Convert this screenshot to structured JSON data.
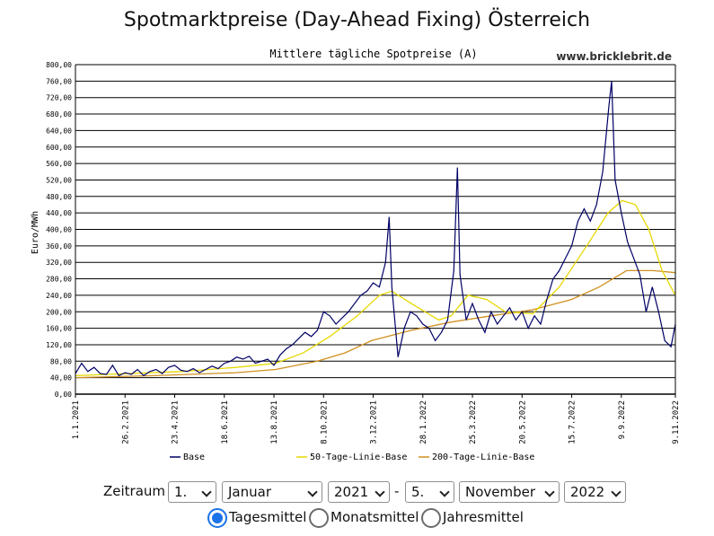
{
  "page": {
    "main_title": "Spotmarktpreise (Day-Ahead Fixing) Österreich",
    "watermark": "www.bricklebrit.de"
  },
  "chart_data": {
    "type": "line",
    "title": "Mittlere tägliche Spotpreise (A)",
    "ylabel": "Euro/MWh",
    "xlabel": "",
    "ylim": [
      0,
      800
    ],
    "y_ticks": [
      "0,00",
      "40,00",
      "80,00",
      "120,00",
      "160,00",
      "200,00",
      "240,00",
      "280,00",
      "320,00",
      "360,00",
      "400,00",
      "440,00",
      "480,00",
      "520,00",
      "560,00",
      "600,00",
      "640,00",
      "680,00",
      "720,00",
      "760,00",
      "800,00"
    ],
    "x_range": [
      "2021-01-01",
      "2022-11-09"
    ],
    "x_ticks": [
      {
        "date": "2021-01-01",
        "label": "1.1.2021"
      },
      {
        "date": "2021-02-26",
        "label": "26.2.2021"
      },
      {
        "date": "2021-04-23",
        "label": "23.4.2021"
      },
      {
        "date": "2021-06-18",
        "label": "18.6.2021"
      },
      {
        "date": "2021-08-13",
        "label": "13.8.2021"
      },
      {
        "date": "2021-10-08",
        "label": "8.10.2021"
      },
      {
        "date": "2021-12-03",
        "label": "3.12.2021"
      },
      {
        "date": "2022-01-28",
        "label": "28.1.2022"
      },
      {
        "date": "2022-03-25",
        "label": "25.3.2022"
      },
      {
        "date": "2022-05-20",
        "label": "20.5.2022"
      },
      {
        "date": "2022-07-15",
        "label": "15.7.2022"
      },
      {
        "date": "2022-09-09",
        "label": "9.9.2022"
      },
      {
        "date": "2022-11-09",
        "label": "9.11.2022"
      }
    ],
    "grid": true,
    "legend_position": "bottom",
    "series": [
      {
        "name": "Base",
        "color": "#000066",
        "points": [
          [
            "2021-01-01",
            50
          ],
          [
            "2021-01-08",
            75
          ],
          [
            "2021-01-15",
            55
          ],
          [
            "2021-01-22",
            65
          ],
          [
            "2021-01-29",
            50
          ],
          [
            "2021-02-05",
            48
          ],
          [
            "2021-02-12",
            70
          ],
          [
            "2021-02-19",
            45
          ],
          [
            "2021-02-26",
            52
          ],
          [
            "2021-03-05",
            48
          ],
          [
            "2021-03-12",
            60
          ],
          [
            "2021-03-19",
            45
          ],
          [
            "2021-03-26",
            55
          ],
          [
            "2021-04-02",
            60
          ],
          [
            "2021-04-09",
            50
          ],
          [
            "2021-04-16",
            65
          ],
          [
            "2021-04-23",
            70
          ],
          [
            "2021-04-30",
            58
          ],
          [
            "2021-05-07",
            55
          ],
          [
            "2021-05-14",
            62
          ],
          [
            "2021-05-21",
            52
          ],
          [
            "2021-05-28",
            60
          ],
          [
            "2021-06-04",
            68
          ],
          [
            "2021-06-11",
            62
          ],
          [
            "2021-06-18",
            75
          ],
          [
            "2021-06-25",
            80
          ],
          [
            "2021-07-02",
            90
          ],
          [
            "2021-07-09",
            85
          ],
          [
            "2021-07-16",
            92
          ],
          [
            "2021-07-23",
            75
          ],
          [
            "2021-07-30",
            80
          ],
          [
            "2021-08-06",
            85
          ],
          [
            "2021-08-13",
            70
          ],
          [
            "2021-08-20",
            95
          ],
          [
            "2021-08-27",
            110
          ],
          [
            "2021-09-03",
            120
          ],
          [
            "2021-09-10",
            135
          ],
          [
            "2021-09-17",
            150
          ],
          [
            "2021-09-24",
            140
          ],
          [
            "2021-10-01",
            155
          ],
          [
            "2021-10-08",
            200
          ],
          [
            "2021-10-15",
            190
          ],
          [
            "2021-10-22",
            170
          ],
          [
            "2021-10-29",
            185
          ],
          [
            "2021-11-05",
            200
          ],
          [
            "2021-11-12",
            220
          ],
          [
            "2021-11-19",
            240
          ],
          [
            "2021-11-26",
            250
          ],
          [
            "2021-12-03",
            270
          ],
          [
            "2021-12-10",
            260
          ],
          [
            "2021-12-17",
            320
          ],
          [
            "2021-12-21",
            430
          ],
          [
            "2021-12-24",
            260
          ],
          [
            "2021-12-31",
            90
          ],
          [
            "2022-01-07",
            160
          ],
          [
            "2022-01-14",
            200
          ],
          [
            "2022-01-21",
            190
          ],
          [
            "2022-01-28",
            170
          ],
          [
            "2022-02-04",
            160
          ],
          [
            "2022-02-11",
            130
          ],
          [
            "2022-02-18",
            150
          ],
          [
            "2022-02-25",
            180
          ],
          [
            "2022-03-04",
            300
          ],
          [
            "2022-03-08",
            550
          ],
          [
            "2022-03-11",
            290
          ],
          [
            "2022-03-18",
            180
          ],
          [
            "2022-03-25",
            220
          ],
          [
            "2022-04-01",
            180
          ],
          [
            "2022-04-08",
            150
          ],
          [
            "2022-04-15",
            200
          ],
          [
            "2022-04-22",
            170
          ],
          [
            "2022-04-29",
            190
          ],
          [
            "2022-05-06",
            210
          ],
          [
            "2022-05-13",
            180
          ],
          [
            "2022-05-20",
            200
          ],
          [
            "2022-05-27",
            160
          ],
          [
            "2022-06-03",
            190
          ],
          [
            "2022-06-10",
            170
          ],
          [
            "2022-06-17",
            230
          ],
          [
            "2022-06-24",
            280
          ],
          [
            "2022-07-01",
            300
          ],
          [
            "2022-07-08",
            330
          ],
          [
            "2022-07-15",
            360
          ],
          [
            "2022-07-22",
            420
          ],
          [
            "2022-07-29",
            450
          ],
          [
            "2022-08-05",
            420
          ],
          [
            "2022-08-12",
            460
          ],
          [
            "2022-08-19",
            540
          ],
          [
            "2022-08-26",
            700
          ],
          [
            "2022-08-29",
            760
          ],
          [
            "2022-09-02",
            520
          ],
          [
            "2022-09-09",
            440
          ],
          [
            "2022-09-16",
            370
          ],
          [
            "2022-09-23",
            330
          ],
          [
            "2022-09-30",
            290
          ],
          [
            "2022-10-07",
            200
          ],
          [
            "2022-10-14",
            260
          ],
          [
            "2022-10-21",
            200
          ],
          [
            "2022-10-28",
            130
          ],
          [
            "2022-11-04",
            115
          ],
          [
            "2022-11-09",
            170
          ]
        ]
      },
      {
        "name": "50-Tage-Linie-Base",
        "color": "#e6d800",
        "points": [
          [
            "2021-01-01",
            45
          ],
          [
            "2021-03-01",
            50
          ],
          [
            "2021-05-01",
            55
          ],
          [
            "2021-07-01",
            65
          ],
          [
            "2021-08-15",
            75
          ],
          [
            "2021-09-15",
            100
          ],
          [
            "2021-10-15",
            140
          ],
          [
            "2021-11-15",
            190
          ],
          [
            "2021-12-10",
            240
          ],
          [
            "2021-12-24",
            250
          ],
          [
            "2022-01-15",
            220
          ],
          [
            "2022-02-15",
            180
          ],
          [
            "2022-03-01",
            190
          ],
          [
            "2022-03-20",
            240
          ],
          [
            "2022-04-10",
            230
          ],
          [
            "2022-05-01",
            200
          ],
          [
            "2022-06-01",
            195
          ],
          [
            "2022-07-01",
            260
          ],
          [
            "2022-08-01",
            360
          ],
          [
            "2022-08-25",
            440
          ],
          [
            "2022-09-10",
            470
          ],
          [
            "2022-09-25",
            460
          ],
          [
            "2022-10-10",
            400
          ],
          [
            "2022-10-25",
            300
          ],
          [
            "2022-11-09",
            240
          ]
        ]
      },
      {
        "name": "200-Tage-Linie-Base",
        "color": "#d09020",
        "points": [
          [
            "2021-01-01",
            40
          ],
          [
            "2021-04-01",
            45
          ],
          [
            "2021-07-01",
            52
          ],
          [
            "2021-08-15",
            60
          ],
          [
            "2021-10-01",
            80
          ],
          [
            "2021-11-01",
            100
          ],
          [
            "2021-12-01",
            130
          ],
          [
            "2022-01-15",
            155
          ],
          [
            "2022-03-01",
            175
          ],
          [
            "2022-04-15",
            190
          ],
          [
            "2022-06-01",
            205
          ],
          [
            "2022-07-15",
            230
          ],
          [
            "2022-08-15",
            260
          ],
          [
            "2022-09-15",
            300
          ],
          [
            "2022-10-15",
            300
          ],
          [
            "2022-11-09",
            295
          ]
        ]
      }
    ]
  },
  "controls": {
    "label": "Zeitraum",
    "from_day": "1.",
    "from_month": "Januar",
    "from_year": "2021",
    "separator": "-",
    "to_day": "5.",
    "to_month": "November",
    "to_year": "2022"
  },
  "radios": [
    {
      "label": "Tagesmittel",
      "checked": true
    },
    {
      "label": "Monatsmittel",
      "checked": false
    },
    {
      "label": "Jahresmittel",
      "checked": false
    }
  ]
}
